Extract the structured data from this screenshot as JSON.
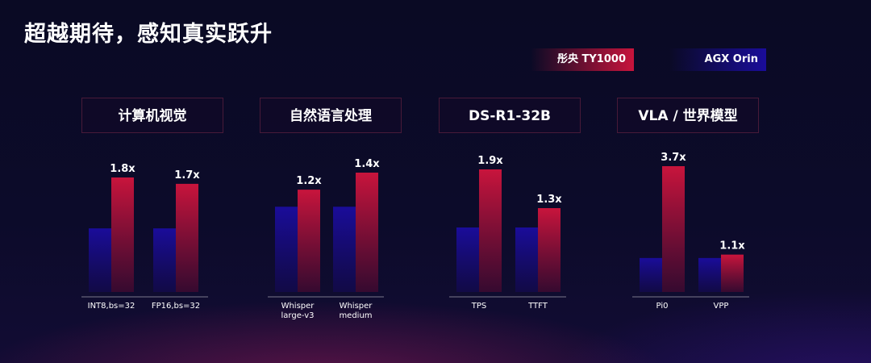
{
  "title": "超越期待，感知真实跃升",
  "legend": {
    "ty1000": "彤央 TY1000",
    "agx": "AGX Orin"
  },
  "colors": {
    "ty1000": "#c8143c",
    "agx": "#1a0c9a"
  },
  "chart_data": [
    {
      "type": "bar",
      "title": "计算机视觉",
      "categories": [
        [
          "INT8,bs=32"
        ],
        [
          "FP16,bs=32"
        ]
      ],
      "series": [
        {
          "name": "AGX Orin",
          "values": [
            1.0,
            1.0
          ]
        },
        {
          "name": "彤央 TY1000",
          "values": [
            1.8,
            1.7
          ],
          "labels": [
            "1.8x",
            "1.7x"
          ]
        }
      ],
      "ylim": [
        0,
        1.9
      ]
    },
    {
      "type": "bar",
      "title": "自然语言处理",
      "categories": [
        [
          "Whisper",
          "large-v3"
        ],
        [
          "Whisper",
          "medium"
        ]
      ],
      "series": [
        {
          "name": "AGX Orin",
          "values": [
            1.0,
            1.0
          ]
        },
        {
          "name": "彤央 TY1000",
          "values": [
            1.2,
            1.4
          ],
          "labels": [
            "1.2x",
            "1.4x"
          ]
        }
      ],
      "ylim": [
        0,
        1.5
      ]
    },
    {
      "type": "bar",
      "title": "DS-R1-32B",
      "categories": [
        [
          "TPS"
        ],
        [
          "TTFT"
        ]
      ],
      "series": [
        {
          "name": "AGX Orin",
          "values": [
            1.0,
            1.0
          ]
        },
        {
          "name": "彤央 TY1000",
          "values": [
            1.9,
            1.3
          ],
          "labels": [
            "1.9x",
            "1.3x"
          ]
        }
      ],
      "ylim": [
        0,
        2.0
      ]
    },
    {
      "type": "bar",
      "title": "VLA / 世界模型",
      "categories": [
        [
          "Pi0"
        ],
        [
          "VPP"
        ]
      ],
      "series": [
        {
          "name": "AGX Orin",
          "values": [
            1.0,
            1.0
          ]
        },
        {
          "name": "彤央 TY1000",
          "values": [
            3.7,
            1.1
          ],
          "labels": [
            "3.7x",
            "1.1x"
          ]
        }
      ],
      "ylim": [
        0,
        4.0
      ]
    }
  ]
}
